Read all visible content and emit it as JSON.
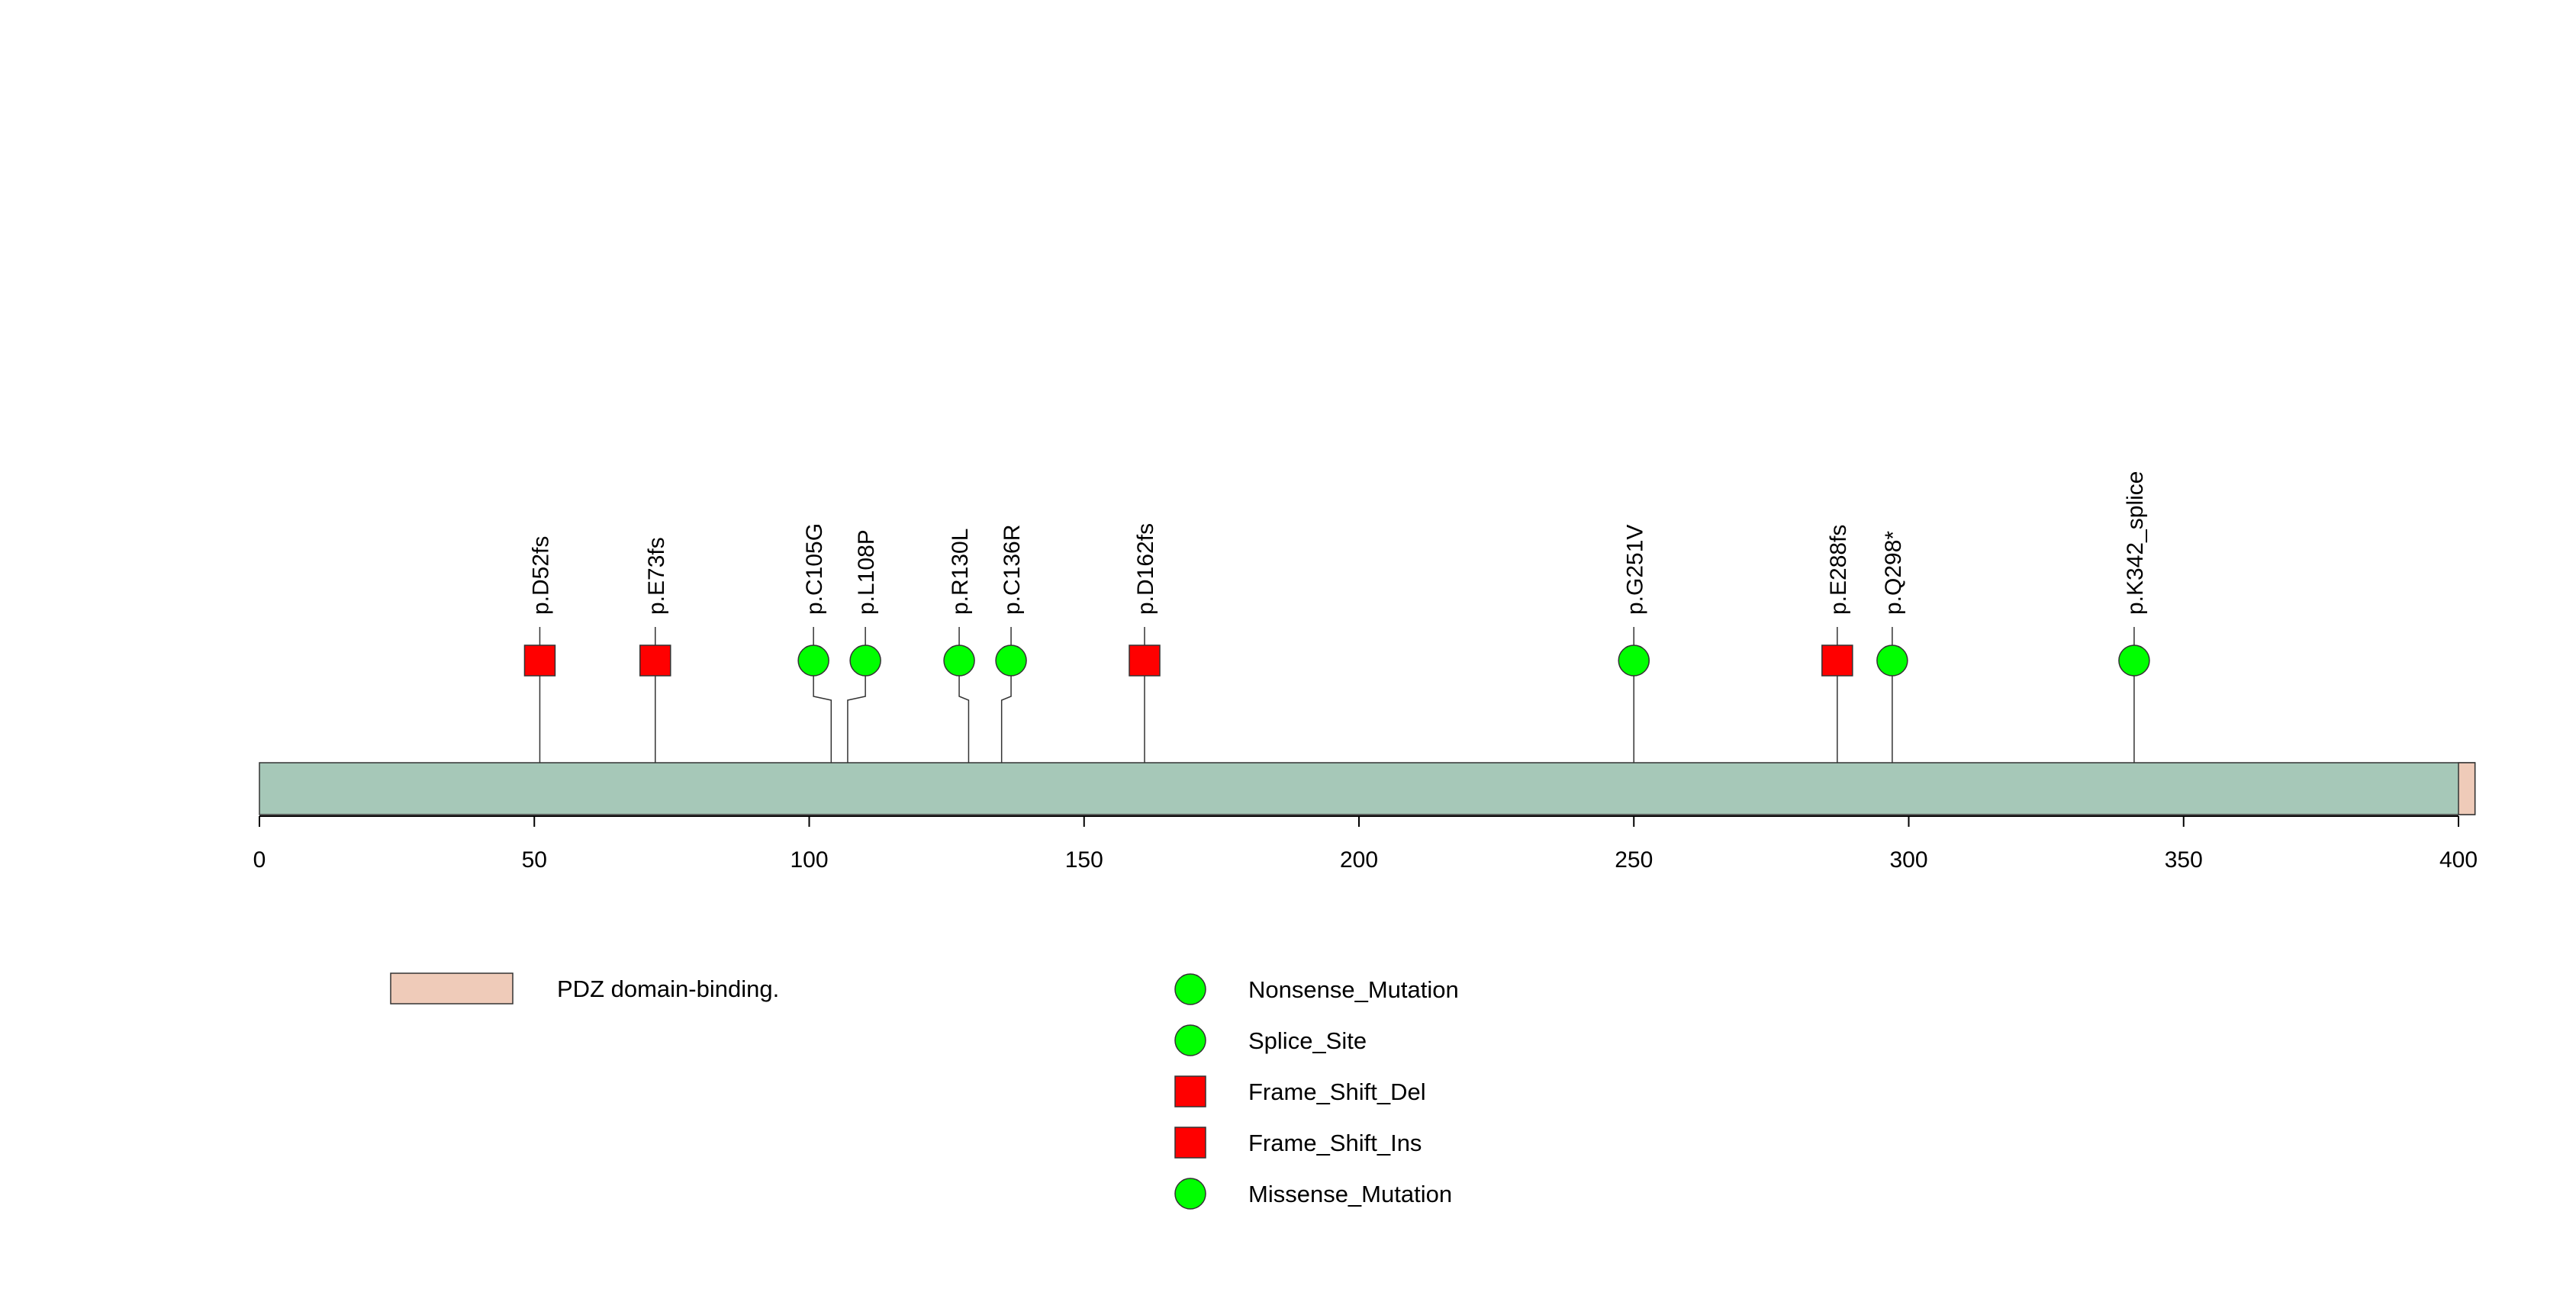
{
  "chart_data": {
    "type": "lollipop",
    "title": "",
    "protein_length": 403,
    "xlim": [
      0,
      403
    ],
    "x_ticks": [
      0,
      50,
      100,
      150,
      200,
      250,
      300,
      350,
      400
    ],
    "backbone_color": "#a6c8b8",
    "domains": [
      {
        "name": "PDZ domain-binding.",
        "start": 400,
        "end": 403,
        "color": "#efcbb9"
      }
    ],
    "mutations": [
      {
        "label": "p.D52fs",
        "position": 51,
        "class": "Frame_Shift_Del"
      },
      {
        "label": "p.E73fs",
        "position": 72,
        "class": "Frame_Shift_Del"
      },
      {
        "label": "p.C105G",
        "position": 104,
        "class": "Missense_Mutation"
      },
      {
        "label": "p.L108P",
        "position": 107,
        "class": "Missense_Mutation"
      },
      {
        "label": "p.R130L",
        "position": 129,
        "class": "Missense_Mutation"
      },
      {
        "label": "p.C136R",
        "position": 135,
        "class": "Missense_Mutation"
      },
      {
        "label": "p.D162fs",
        "position": 161,
        "class": "Frame_Shift_Del"
      },
      {
        "label": "p.G251V",
        "position": 250,
        "class": "Missense_Mutation"
      },
      {
        "label": "p.E288fs",
        "position": 287,
        "class": "Frame_Shift_Ins"
      },
      {
        "label": "p.Q298*",
        "position": 297,
        "class": "Nonsense_Mutation"
      },
      {
        "label": "p.K342_splice",
        "position": 341,
        "class": "Splice_Site"
      }
    ],
    "legend": {
      "domains": [
        {
          "label": "PDZ domain-binding.",
          "color": "#efcbb9"
        }
      ],
      "mutation_types": [
        {
          "label": "Nonsense_Mutation",
          "shape": "circle",
          "color": "#00ff00"
        },
        {
          "label": "Splice_Site",
          "shape": "circle",
          "color": "#00ff00"
        },
        {
          "label": "Frame_Shift_Del",
          "shape": "square",
          "color": "#ff0000"
        },
        {
          "label": "Frame_Shift_Ins",
          "shape": "square",
          "color": "#ff0000"
        },
        {
          "label": "Missense_Mutation",
          "shape": "circle",
          "color": "#00ff00"
        }
      ]
    }
  }
}
